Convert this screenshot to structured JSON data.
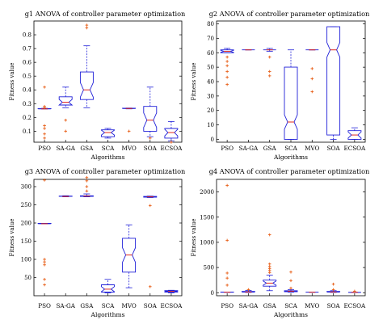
{
  "colors": {
    "box": "#1f1fd8",
    "median": "#e0281e",
    "outlier": "#e8601a",
    "axis": "#000000"
  },
  "chart_data": [
    {
      "type": "box",
      "title": "g1 ANOVA of controller parameter optimization",
      "xlabel": "Algorithms",
      "ylabel": "Fitness value",
      "categories": [
        "PSO",
        "SA-GA",
        "GSA",
        "SCA",
        "MVO",
        "SOA",
        "ECSOA"
      ],
      "ylim": [
        0.02,
        0.9
      ],
      "yticks": [
        0.1,
        0.2,
        0.3,
        0.4,
        0.5,
        0.6,
        0.7,
        0.8
      ],
      "grid": false,
      "boxes": [
        {
          "whislo": 0.262,
          "q1": 0.262,
          "med": 0.262,
          "q3": 0.264,
          "whishi": 0.266,
          "fliers": [
            0.42,
            0.28,
            0.27,
            0.14,
            0.12,
            0.08,
            0.05
          ]
        },
        {
          "whislo": 0.27,
          "q1": 0.29,
          "med": 0.31,
          "q3": 0.35,
          "whishi": 0.42,
          "fliers": [
            0.18,
            0.1
          ]
        },
        {
          "whislo": 0.27,
          "q1": 0.33,
          "med": 0.4,
          "q3": 0.53,
          "whishi": 0.72,
          "fliers": [
            0.87,
            0.85
          ]
        },
        {
          "whislo": 0.05,
          "q1": 0.06,
          "med": 0.09,
          "q3": 0.11,
          "whishi": 0.12,
          "fliers": []
        },
        {
          "whislo": 0.262,
          "q1": 0.264,
          "med": 0.265,
          "q3": 0.267,
          "whishi": 0.268,
          "fliers": [
            0.1
          ]
        },
        {
          "whislo": 0.06,
          "q1": 0.1,
          "med": 0.18,
          "q3": 0.28,
          "whishi": 0.42,
          "fliers": [
            0.05
          ]
        },
        {
          "whislo": 0.03,
          "q1": 0.05,
          "med": 0.09,
          "q3": 0.12,
          "whishi": 0.17,
          "fliers": [
            0.02
          ]
        }
      ]
    },
    {
      "type": "box",
      "title": "g2 ANOVA of controller parameter optimization",
      "xlabel": "Algorithms",
      "ylabel": "Fitness value",
      "categories": [
        "PSO",
        "SA-GA",
        "GSA",
        "SCA",
        "MVO",
        "SOA",
        "ECSOA"
      ],
      "ylim": [
        -2,
        82
      ],
      "yticks": [
        0,
        10,
        20,
        30,
        40,
        50,
        60,
        70,
        80
      ],
      "grid": false,
      "boxes": [
        {
          "whislo": 60,
          "q1": 60,
          "med": 61,
          "q3": 62,
          "whishi": 63,
          "fliers": [
            57,
            54,
            51,
            47,
            43,
            38
          ]
        },
        {
          "whislo": 62,
          "q1": 62,
          "med": 62,
          "q3": 62,
          "whishi": 62,
          "fliers": []
        },
        {
          "whislo": 61,
          "q1": 62,
          "med": 62,
          "q3": 62,
          "whishi": 63,
          "fliers": [
            57,
            47,
            44
          ]
        },
        {
          "whislo": 0,
          "q1": 0,
          "med": 12,
          "q3": 50,
          "whishi": 62,
          "fliers": []
        },
        {
          "whislo": 62,
          "q1": 62,
          "med": 62,
          "q3": 62,
          "whishi": 62,
          "fliers": [
            49,
            42,
            33
          ]
        },
        {
          "whislo": 0,
          "q1": 3,
          "med": 62,
          "q3": 78,
          "whishi": 78,
          "fliers": []
        },
        {
          "whislo": 0,
          "q1": 0,
          "med": 3,
          "q3": 6,
          "whishi": 8,
          "fliers": []
        }
      ]
    },
    {
      "type": "box",
      "title": "g3 ANOVA of controller parameter optimization",
      "xlabel": "Algorithms",
      "ylabel": "Fitness value",
      "categories": [
        "PSO",
        "SA-GA",
        "GSA",
        "SCA",
        "MVO",
        "SOA",
        "ECSOA"
      ],
      "ylim": [
        0,
        320
      ],
      "yticks": [
        50,
        100,
        150,
        200,
        250,
        300
      ],
      "grid": false,
      "boxes": [
        {
          "whislo": 198,
          "q1": 198,
          "med": 198,
          "q3": 199,
          "whishi": 199,
          "fliers": [
            318,
            100,
            93,
            85,
            45,
            30
          ]
        },
        {
          "whislo": 272,
          "q1": 273,
          "med": 273,
          "q3": 274,
          "whishi": 275,
          "fliers": []
        },
        {
          "whislo": 272,
          "q1": 273,
          "med": 274,
          "q3": 275,
          "whishi": 280,
          "fliers": [
            325,
            316,
            300,
            288
          ]
        },
        {
          "whislo": 8,
          "q1": 10,
          "med": 18,
          "q3": 30,
          "whishi": 45,
          "fliers": []
        },
        {
          "whislo": 22,
          "q1": 65,
          "med": 112,
          "q3": 158,
          "whishi": 195,
          "fliers": []
        },
        {
          "whislo": 270,
          "q1": 271,
          "med": 272,
          "q3": 273,
          "whishi": 274,
          "fliers": [
            248,
            25
          ]
        },
        {
          "whislo": 8,
          "q1": 10,
          "med": 12,
          "q3": 14,
          "whishi": 15,
          "fliers": []
        }
      ]
    },
    {
      "type": "box",
      "title": "g4 ANOVA of controller parameter optimization",
      "xlabel": "Algorithms",
      "ylabel": "Fitness value",
      "categories": [
        "PSO",
        "SA-GA",
        "GSA",
        "SCA",
        "MVO",
        "SOA",
        "ECSOA"
      ],
      "ylim": [
        -60,
        2250
      ],
      "yticks": [
        0,
        500,
        1000,
        1500,
        2000
      ],
      "grid": false,
      "boxes": [
        {
          "whislo": 8,
          "q1": 9,
          "med": 10,
          "q3": 12,
          "whishi": 14,
          "fliers": [
            2130,
            1040,
            390,
            290,
            150
          ]
        },
        {
          "whislo": 5,
          "q1": 10,
          "med": 15,
          "q3": 25,
          "whishi": 45,
          "fliers": [
            60
          ]
        },
        {
          "whislo": 40,
          "q1": 130,
          "med": 190,
          "q3": 250,
          "whishi": 350,
          "fliers": [
            1150,
            570,
            520,
            480,
            440,
            400
          ]
        },
        {
          "whislo": 10,
          "q1": 20,
          "med": 30,
          "q3": 40,
          "whishi": 60,
          "fliers": [
            410,
            240,
            90
          ]
        },
        {
          "whislo": 8,
          "q1": 9,
          "med": 10,
          "q3": 11,
          "whishi": 12,
          "fliers": []
        },
        {
          "whislo": 5,
          "q1": 10,
          "med": 15,
          "q3": 25,
          "whishi": 40,
          "fliers": [
            170,
            60
          ]
        },
        {
          "whislo": 2,
          "q1": 4,
          "med": 6,
          "q3": 8,
          "whishi": 10,
          "fliers": [
            30
          ]
        }
      ]
    }
  ]
}
